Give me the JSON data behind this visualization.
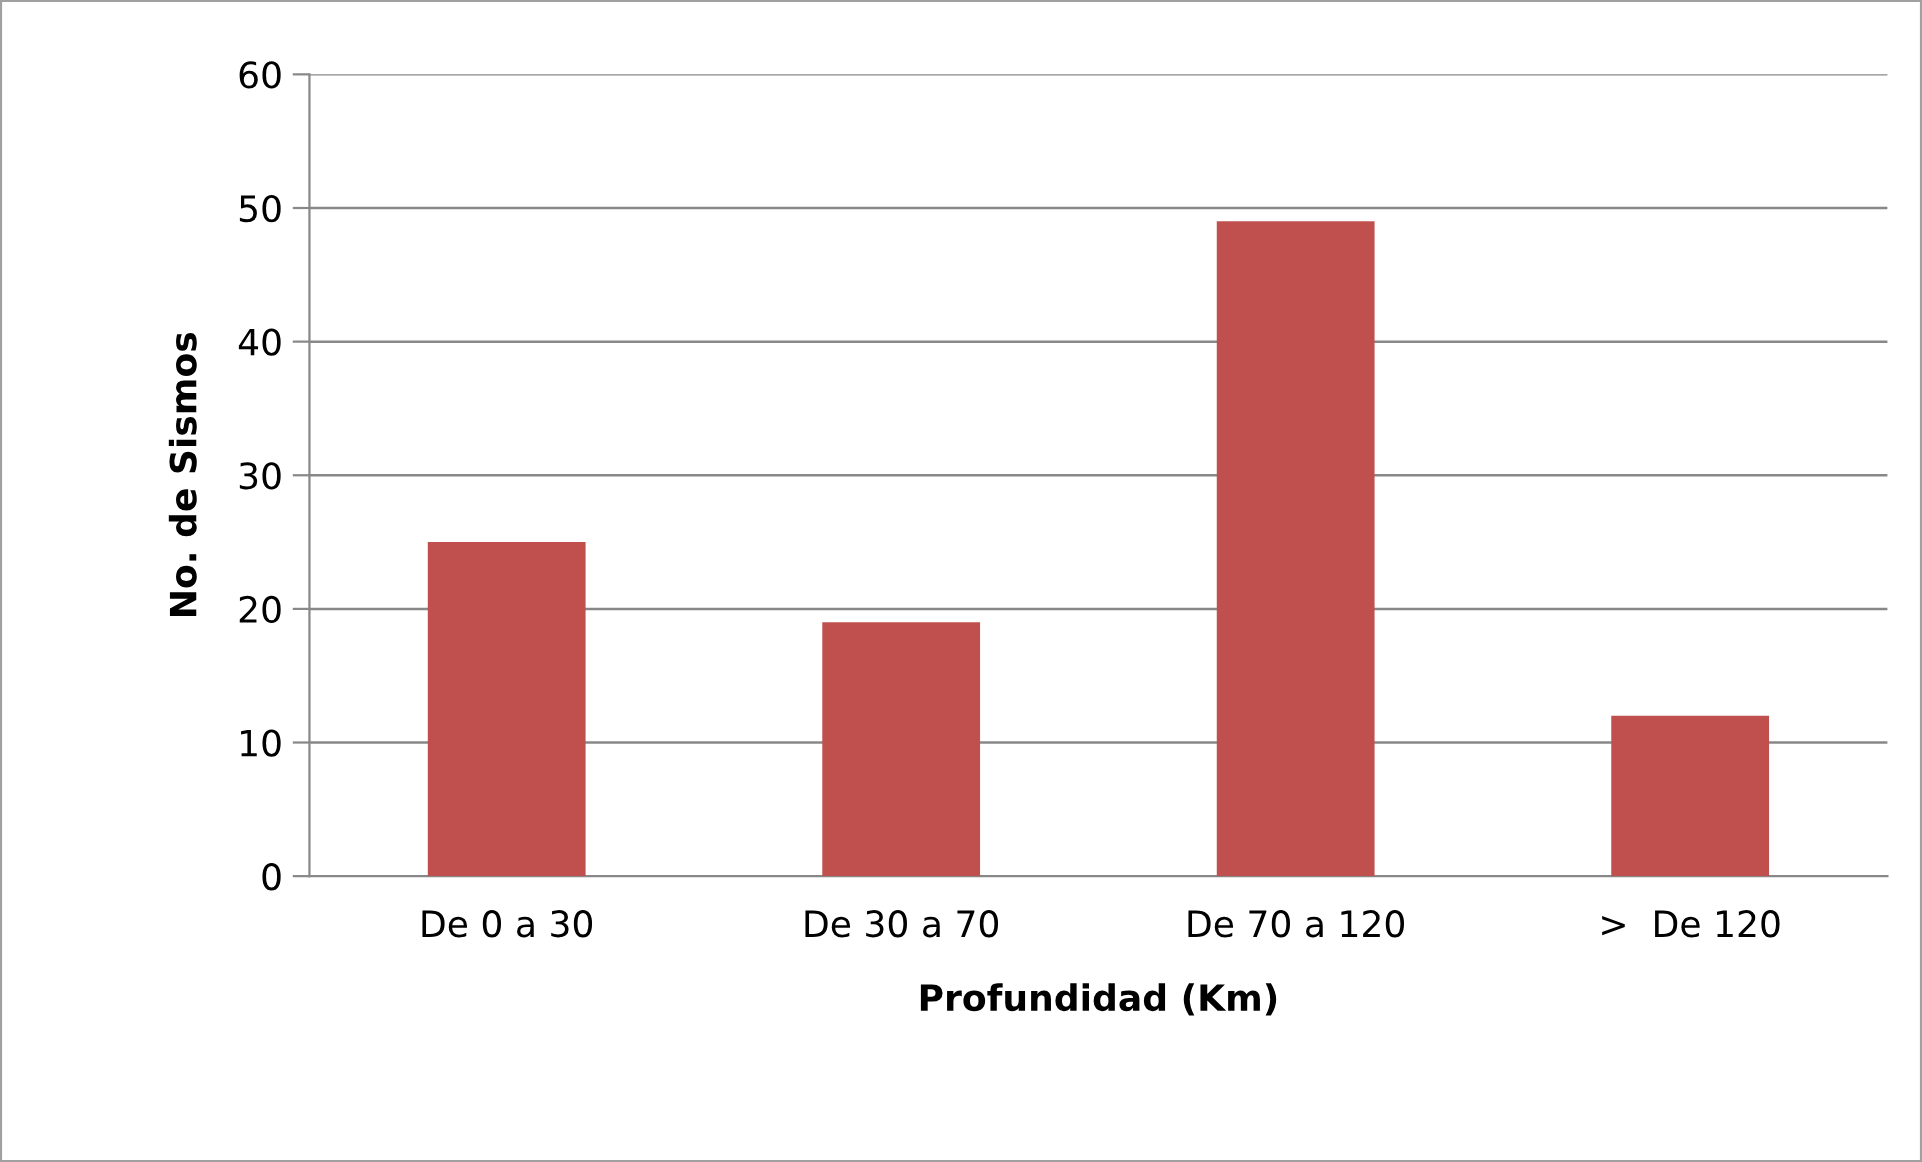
{
  "chart_data": {
    "type": "bar",
    "categories": [
      "De 0 a 30",
      "De 30 a 70",
      "De 70 a 120",
      ">  De 120"
    ],
    "values": [
      25,
      19,
      49,
      12
    ],
    "color": "#c0504d",
    "xlabel": "Profundidad (Km)",
    "ylabel": "No. de Sismos",
    "ylim": [
      0,
      60
    ],
    "yticks": [
      0,
      10,
      20,
      30,
      40,
      50,
      60
    ],
    "grid": "y"
  }
}
